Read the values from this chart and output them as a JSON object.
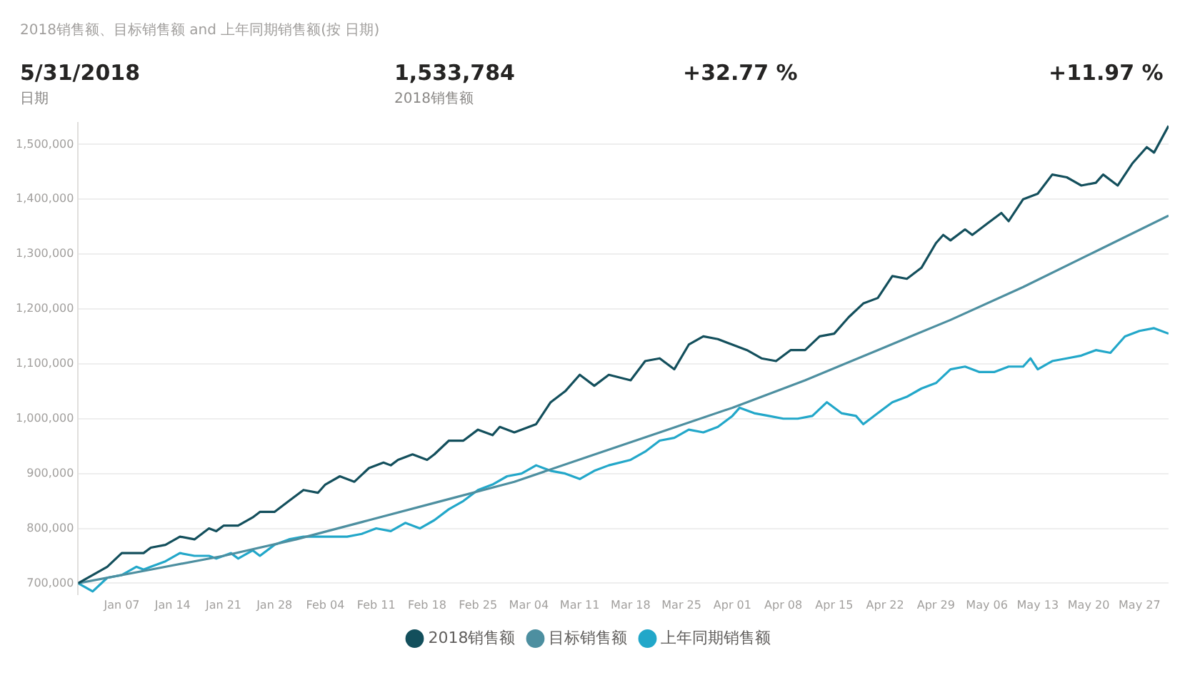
{
  "chart_data": {
    "type": "line",
    "title": "2018销售额、目标销售额 and 上年同期销售额(按 日期)",
    "annotations": [
      "5/31/2018",
      "日期",
      "1,533,784",
      "2018销售额",
      "+32.77 %",
      "+11.97 %"
    ],
    "xlim": [
      "2018-01-01",
      "2018-05-31"
    ],
    "xticks": [
      {
        "value": "2018-01-07",
        "label": "Jan 07"
      },
      {
        "value": "2018-01-14",
        "label": "Jan 14"
      },
      {
        "value": "2018-01-21",
        "label": "Jan 21"
      },
      {
        "value": "2018-01-28",
        "label": "Jan 28"
      },
      {
        "value": "2018-02-04",
        "label": "Feb 04"
      },
      {
        "value": "2018-02-11",
        "label": "Feb 11"
      },
      {
        "value": "2018-02-18",
        "label": "Feb 18"
      },
      {
        "value": "2018-02-25",
        "label": "Feb 25"
      },
      {
        "value": "2018-03-04",
        "label": "Mar 04"
      },
      {
        "value": "2018-03-11",
        "label": "Mar 11"
      },
      {
        "value": "2018-03-18",
        "label": "Mar 18"
      },
      {
        "value": "2018-03-25",
        "label": "Mar 25"
      },
      {
        "value": "2018-04-01",
        "label": "Apr 01"
      },
      {
        "value": "2018-04-08",
        "label": "Apr 08"
      },
      {
        "value": "2018-04-15",
        "label": "Apr 15"
      },
      {
        "value": "2018-04-22",
        "label": "Apr 22"
      },
      {
        "value": "2018-04-29",
        "label": "Apr 29"
      },
      {
        "value": "2018-05-06",
        "label": "May 06"
      },
      {
        "value": "2018-05-13",
        "label": "May 13"
      },
      {
        "value": "2018-05-20",
        "label": "May 20"
      },
      {
        "value": "2018-05-27",
        "label": "May 27"
      }
    ],
    "ylim": [
      680000,
      1540000
    ],
    "yticks": [
      {
        "value": 700000,
        "label": "700,000"
      },
      {
        "value": 800000,
        "label": "800,000"
      },
      {
        "value": 900000,
        "label": "900,000"
      },
      {
        "value": 1000000,
        "label": "1,000,000"
      },
      {
        "value": 1100000,
        "label": "1,100,000"
      },
      {
        "value": 1200000,
        "label": "1,200,000"
      },
      {
        "value": 1300000,
        "label": "1,300,000"
      },
      {
        "value": 1400000,
        "label": "1,400,000"
      },
      {
        "value": 1500000,
        "label": "1,500,000"
      }
    ],
    "grid": "y",
    "legend": "bottom",
    "marker": "none",
    "line_style": "solid",
    "series": [
      {
        "name": "2018销售额",
        "color": "#134f5c",
        "x": [
          "2018-01-01",
          "2018-01-03",
          "2018-01-05",
          "2018-01-07",
          "2018-01-09",
          "2018-01-10",
          "2018-01-11",
          "2018-01-13",
          "2018-01-15",
          "2018-01-17",
          "2018-01-19",
          "2018-01-20",
          "2018-01-21",
          "2018-01-23",
          "2018-01-25",
          "2018-01-26",
          "2018-01-28",
          "2018-01-30",
          "2018-02-01",
          "2018-02-03",
          "2018-02-04",
          "2018-02-06",
          "2018-02-08",
          "2018-02-10",
          "2018-02-12",
          "2018-02-13",
          "2018-02-14",
          "2018-02-16",
          "2018-02-18",
          "2018-02-19",
          "2018-02-21",
          "2018-02-23",
          "2018-02-25",
          "2018-02-27",
          "2018-02-28",
          "2018-03-02",
          "2018-03-05",
          "2018-03-07",
          "2018-03-09",
          "2018-03-11",
          "2018-03-13",
          "2018-03-15",
          "2018-03-18",
          "2018-03-20",
          "2018-03-22",
          "2018-03-24",
          "2018-03-26",
          "2018-03-28",
          "2018-03-30",
          "2018-04-01",
          "2018-04-03",
          "2018-04-05",
          "2018-04-07",
          "2018-04-09",
          "2018-04-11",
          "2018-04-13",
          "2018-04-15",
          "2018-04-17",
          "2018-04-19",
          "2018-04-21",
          "2018-04-23",
          "2018-04-25",
          "2018-04-27",
          "2018-04-29",
          "2018-04-30",
          "2018-05-01",
          "2018-05-03",
          "2018-05-04",
          "2018-05-06",
          "2018-05-08",
          "2018-05-09",
          "2018-05-11",
          "2018-05-13",
          "2018-05-15",
          "2018-05-17",
          "2018-05-19",
          "2018-05-21",
          "2018-05-22",
          "2018-05-24",
          "2018-05-26",
          "2018-05-28",
          "2018-05-29",
          "2018-05-31"
        ],
        "values": [
          700000,
          715000,
          730000,
          755000,
          755000,
          755000,
          765000,
          770000,
          785000,
          780000,
          800000,
          795000,
          805000,
          805000,
          820000,
          830000,
          830000,
          850000,
          870000,
          865000,
          880000,
          895000,
          885000,
          910000,
          920000,
          915000,
          925000,
          935000,
          925000,
          935000,
          960000,
          960000,
          980000,
          970000,
          985000,
          975000,
          990000,
          1030000,
          1050000,
          1080000,
          1060000,
          1080000,
          1070000,
          1105000,
          1110000,
          1090000,
          1135000,
          1150000,
          1145000,
          1135000,
          1125000,
          1110000,
          1105000,
          1125000,
          1125000,
          1150000,
          1155000,
          1185000,
          1210000,
          1220000,
          1260000,
          1255000,
          1275000,
          1320000,
          1335000,
          1325000,
          1345000,
          1335000,
          1355000,
          1375000,
          1360000,
          1400000,
          1410000,
          1445000,
          1440000,
          1425000,
          1430000,
          1445000,
          1425000,
          1465000,
          1495000,
          1485000,
          1533784
        ]
      },
      {
        "name": "目标销售额",
        "color": "#4d8fa0",
        "x": [
          "2018-01-01",
          "2018-01-11",
          "2018-01-21",
          "2018-01-31",
          "2018-02-10",
          "2018-02-20",
          "2018-03-02",
          "2018-03-12",
          "2018-03-22",
          "2018-04-01",
          "2018-04-11",
          "2018-04-21",
          "2018-05-01",
          "2018-05-11",
          "2018-05-21",
          "2018-05-31"
        ],
        "values": [
          700000,
          725000,
          750000,
          780000,
          815000,
          850000,
          885000,
          930000,
          975000,
          1020000,
          1070000,
          1125000,
          1180000,
          1240000,
          1305000,
          1370000
        ]
      },
      {
        "name": "上年同期销售额",
        "color": "#22a7c9",
        "x": [
          "2018-01-01",
          "2018-01-03",
          "2018-01-05",
          "2018-01-07",
          "2018-01-09",
          "2018-01-10",
          "2018-01-11",
          "2018-01-13",
          "2018-01-15",
          "2018-01-17",
          "2018-01-19",
          "2018-01-20",
          "2018-01-22",
          "2018-01-23",
          "2018-01-25",
          "2018-01-26",
          "2018-01-28",
          "2018-01-30",
          "2018-02-01",
          "2018-02-03",
          "2018-02-05",
          "2018-02-07",
          "2018-02-09",
          "2018-02-11",
          "2018-02-13",
          "2018-02-15",
          "2018-02-17",
          "2018-02-19",
          "2018-02-21",
          "2018-02-23",
          "2018-02-25",
          "2018-02-27",
          "2018-03-01",
          "2018-03-03",
          "2018-03-05",
          "2018-03-07",
          "2018-03-09",
          "2018-03-11",
          "2018-03-13",
          "2018-03-15",
          "2018-03-18",
          "2018-03-20",
          "2018-03-22",
          "2018-03-24",
          "2018-03-26",
          "2018-03-28",
          "2018-03-30",
          "2018-04-01",
          "2018-04-02",
          "2018-04-04",
          "2018-04-06",
          "2018-04-08",
          "2018-04-10",
          "2018-04-12",
          "2018-04-14",
          "2018-04-16",
          "2018-04-18",
          "2018-04-19",
          "2018-04-21",
          "2018-04-23",
          "2018-04-25",
          "2018-04-27",
          "2018-04-29",
          "2018-05-01",
          "2018-05-03",
          "2018-05-05",
          "2018-05-07",
          "2018-05-09",
          "2018-05-11",
          "2018-05-12",
          "2018-05-13",
          "2018-05-15",
          "2018-05-17",
          "2018-05-19",
          "2018-05-21",
          "2018-05-23",
          "2018-05-25",
          "2018-05-27",
          "2018-05-29",
          "2018-05-31"
        ],
        "values": [
          700000,
          685000,
          710000,
          715000,
          730000,
          725000,
          730000,
          740000,
          755000,
          750000,
          750000,
          745000,
          755000,
          745000,
          760000,
          750000,
          770000,
          780000,
          785000,
          785000,
          785000,
          785000,
          790000,
          800000,
          795000,
          810000,
          800000,
          815000,
          835000,
          850000,
          870000,
          880000,
          895000,
          900000,
          915000,
          905000,
          900000,
          890000,
          905000,
          915000,
          925000,
          940000,
          960000,
          965000,
          980000,
          975000,
          985000,
          1005000,
          1020000,
          1010000,
          1005000,
          1000000,
          1000000,
          1005000,
          1030000,
          1010000,
          1005000,
          990000,
          1010000,
          1030000,
          1040000,
          1055000,
          1065000,
          1090000,
          1095000,
          1085000,
          1085000,
          1095000,
          1095000,
          1110000,
          1090000,
          1105000,
          1110000,
          1115000,
          1125000,
          1120000,
          1150000,
          1160000,
          1165000,
          1155000
        ]
      }
    ]
  }
}
